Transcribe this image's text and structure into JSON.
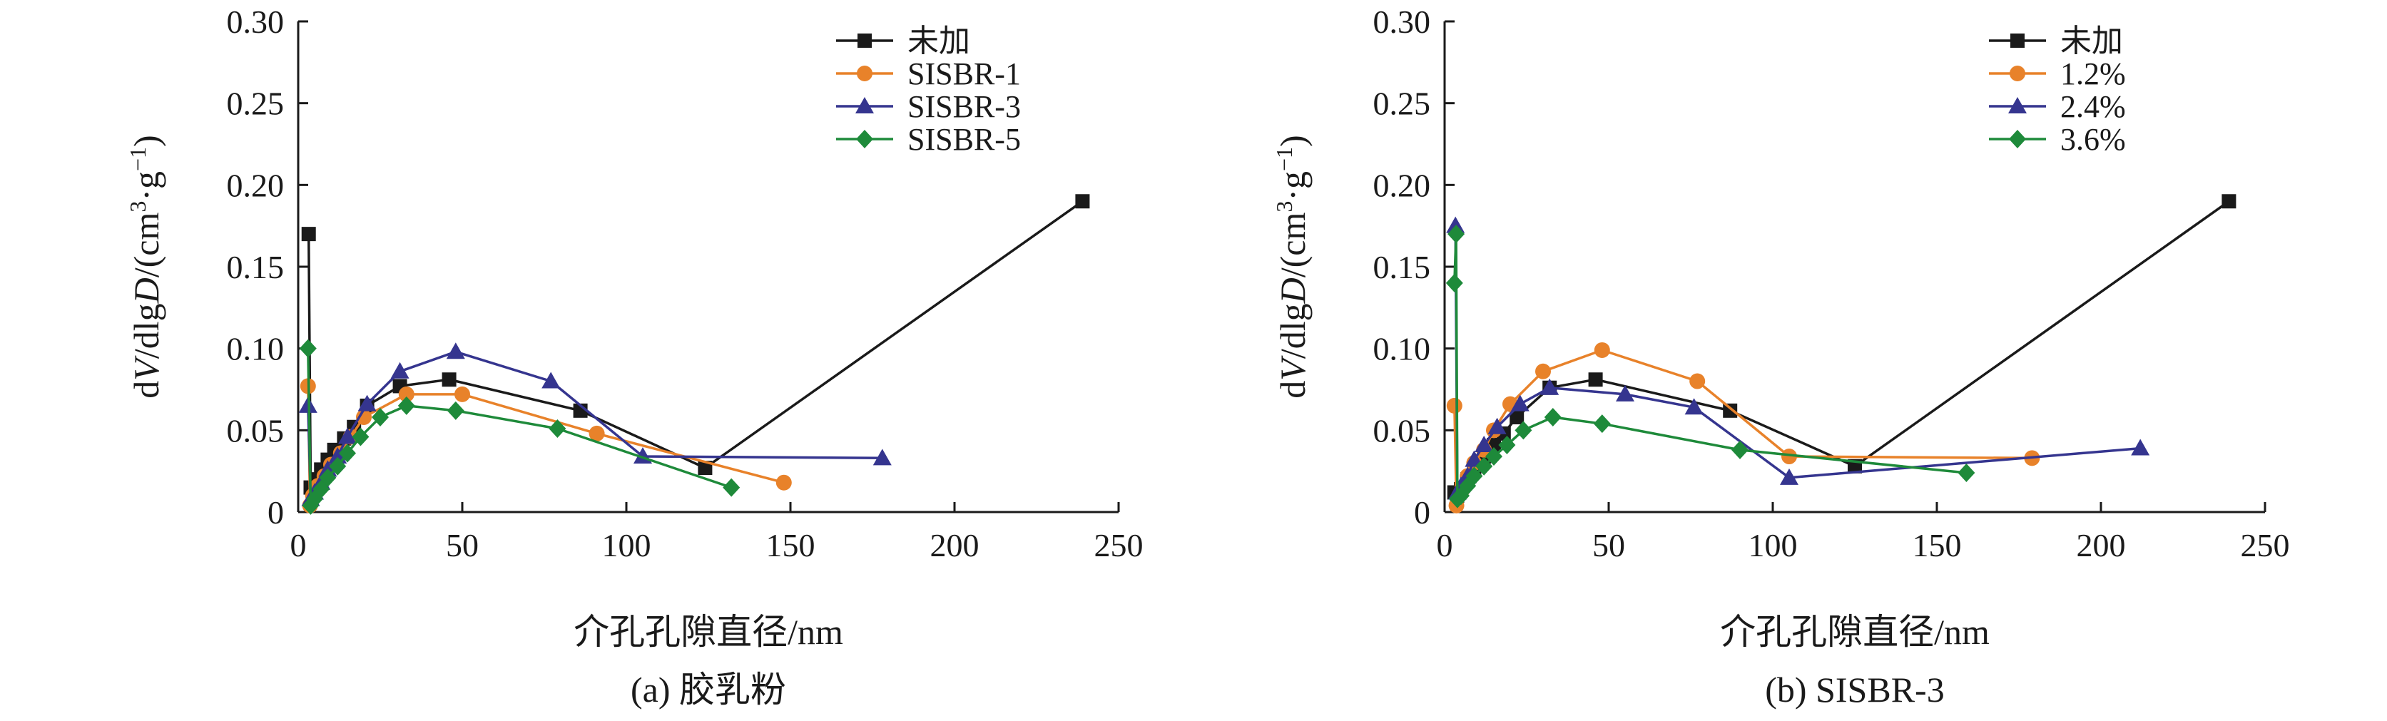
{
  "chart_data": [
    {
      "type": "line",
      "panel": "a",
      "caption": "(a) 胶乳粉",
      "xlabel": "介孔孔隙直径/nm",
      "ylabel": {
        "d": "d",
        "V": "V",
        "dlg": "/dlg",
        "D": "D",
        "unit": "/(cm",
        "sup3": "3",
        "dot": "·g",
        "supm1": "−1",
        "close": ")"
      },
      "xlim": [
        0,
        250
      ],
      "ylim": [
        0,
        0.3
      ],
      "xticks": [
        0,
        50,
        100,
        150,
        200,
        250
      ],
      "yticks": [
        0,
        0.05,
        0.1,
        0.15,
        0.2,
        0.25,
        0.3
      ],
      "xtick_labels": [
        "0",
        "50",
        "100",
        "150",
        "200",
        "250"
      ],
      "ytick_labels": [
        "0",
        "0.05",
        "0.10",
        "0.15",
        "0.20",
        "0.25",
        "0.30"
      ],
      "legend_position": "top-right",
      "series": [
        {
          "name": "未加",
          "color": "#1a1a1a",
          "marker": "square",
          "x": [
            3.2,
            3.8,
            4.5,
            5.5,
            7,
            9,
            11,
            14,
            17,
            21,
            31,
            46,
            86,
            124,
            239
          ],
          "y": [
            0.17,
            0.015,
            0.012,
            0.02,
            0.026,
            0.032,
            0.038,
            0.045,
            0.052,
            0.065,
            0.077,
            0.081,
            0.062,
            0.027,
            0.19
          ]
        },
        {
          "name": "SISBR-1",
          "color": "#e8822a",
          "marker": "circle",
          "x": [
            3,
            3.6,
            4.5,
            6,
            8,
            10,
            13,
            16,
            20,
            33,
            50,
            91,
            148
          ],
          "y": [
            0.077,
            0.004,
            0.01,
            0.016,
            0.022,
            0.029,
            0.036,
            0.046,
            0.058,
            0.072,
            0.072,
            0.048,
            0.018
          ]
        },
        {
          "name": "SISBR-3",
          "color": "#35358f",
          "marker": "triangle",
          "x": [
            3,
            3.8,
            5,
            7,
            9,
            12,
            15,
            21,
            31,
            48,
            77,
            105,
            178
          ],
          "y": [
            0.065,
            0.008,
            0.012,
            0.018,
            0.026,
            0.034,
            0.046,
            0.066,
            0.086,
            0.098,
            0.08,
            0.034,
            0.033
          ]
        },
        {
          "name": "SISBR-5",
          "color": "#1e8a3a",
          "marker": "diamond",
          "x": [
            3,
            3.8,
            5,
            7,
            9,
            12,
            15,
            19,
            25,
            33,
            48,
            79,
            132
          ],
          "y": [
            0.1,
            0.004,
            0.008,
            0.014,
            0.021,
            0.028,
            0.036,
            0.046,
            0.058,
            0.065,
            0.062,
            0.051,
            0.015
          ]
        }
      ]
    },
    {
      "type": "line",
      "panel": "b",
      "caption": "(b) SISBR-3",
      "xlabel": "介孔孔隙直径/nm",
      "ylabel": {
        "d": "d",
        "V": "V",
        "dlg": "/dlg",
        "D": "D",
        "unit": "/(cm",
        "sup3": "3",
        "dot": "·g",
        "supm1": "−1",
        "close": ")"
      },
      "xlim": [
        0,
        250
      ],
      "ylim": [
        0,
        0.3
      ],
      "xticks": [
        0,
        50,
        100,
        150,
        200,
        250
      ],
      "yticks": [
        0,
        0.05,
        0.1,
        0.15,
        0.2,
        0.25,
        0.3
      ],
      "xtick_labels": [
        "0",
        "50",
        "100",
        "150",
        "200",
        "250"
      ],
      "ytick_labels": [
        "0",
        "0.05",
        "0.10",
        "0.15",
        "0.20",
        "0.25",
        "0.30"
      ],
      "legend_position": "top-right",
      "series": [
        {
          "name": "未加",
          "color": "#1a1a1a",
          "marker": "square",
          "x": [
            3,
            3.8,
            5,
            7,
            9,
            12,
            15,
            18,
            22,
            32,
            46,
            87,
            125,
            239
          ],
          "y": [
            0.012,
            0.01,
            0.014,
            0.02,
            0.026,
            0.034,
            0.041,
            0.048,
            0.058,
            0.076,
            0.081,
            0.062,
            0.028,
            0.19
          ]
        },
        {
          "name": "1.2%",
          "color": "#e8822a",
          "marker": "circle",
          "x": [
            3,
            3.6,
            5,
            7,
            9,
            12,
            15,
            20,
            30,
            48,
            77,
            105,
            179
          ],
          "y": [
            0.065,
            0.004,
            0.012,
            0.022,
            0.03,
            0.038,
            0.05,
            0.066,
            0.086,
            0.099,
            0.08,
            0.034,
            0.033
          ]
        },
        {
          "name": "2.4%",
          "color": "#35358f",
          "marker": "triangle",
          "x": [
            3.3,
            3.9,
            5,
            7,
            9,
            12,
            16,
            23,
            32,
            55,
            76,
            105,
            212
          ],
          "y": [
            0.175,
            0.012,
            0.016,
            0.022,
            0.032,
            0.041,
            0.052,
            0.066,
            0.076,
            0.072,
            0.064,
            0.021,
            0.039
          ]
        },
        {
          "name": "3.6%",
          "color": "#1e8a3a",
          "marker": "diamond",
          "x": [
            3,
            3.5,
            3.9,
            5,
            7,
            9,
            12,
            15,
            19,
            24,
            33,
            48,
            90,
            159
          ],
          "y": [
            0.14,
            0.17,
            0.008,
            0.01,
            0.016,
            0.022,
            0.028,
            0.034,
            0.041,
            0.05,
            0.058,
            0.054,
            0.038,
            0.024
          ]
        }
      ]
    }
  ]
}
